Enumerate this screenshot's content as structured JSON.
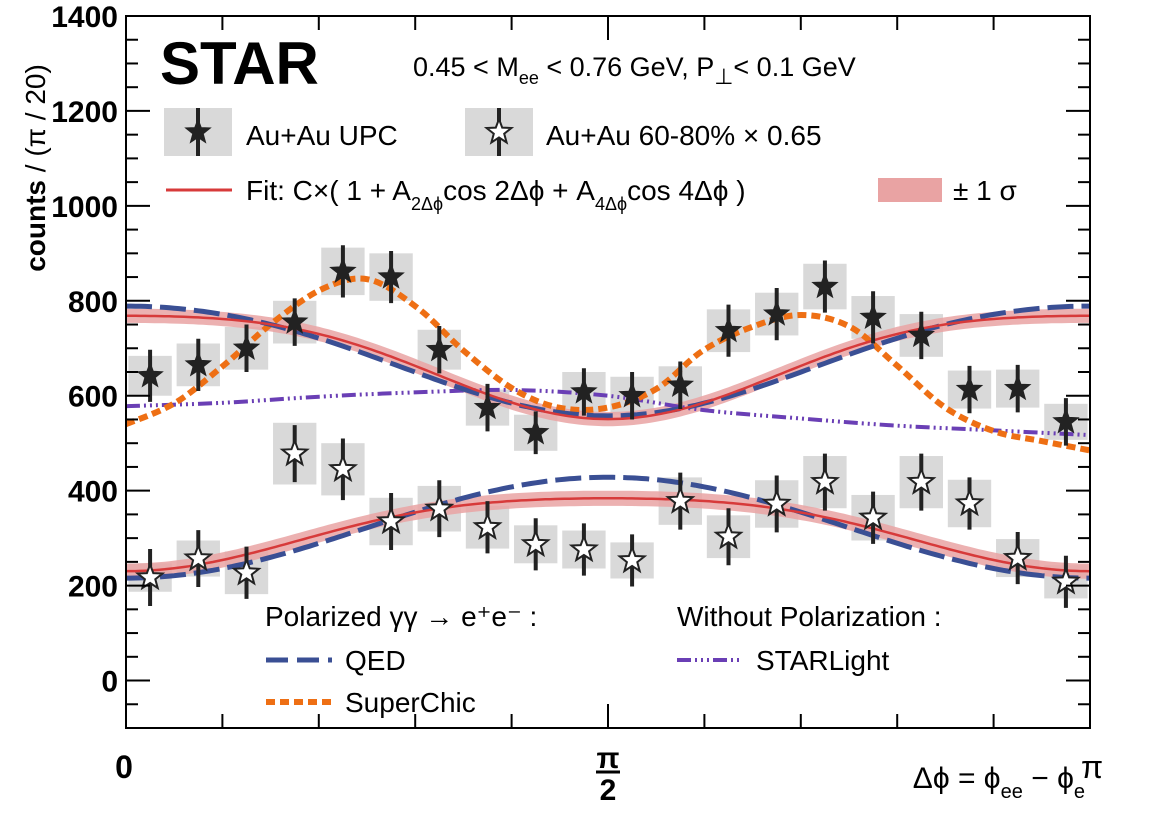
{
  "chart_data": {
    "type": "scatter",
    "experiment": "STAR",
    "kinematics": {
      "prefix": "0.45 < M",
      "m_sub": "ee",
      "mid": " < 0.76 GeV, P",
      "p_sub": "⊥",
      "suffix": "< 0.1 GeV"
    },
    "ylabel": {
      "main": "counts",
      "unit": " / (π / 20)"
    },
    "xlabel": {
      "lhs": "Δϕ = ϕ",
      "sub1": "ee",
      "mid": " − ϕ",
      "sub2": "e"
    },
    "xlim": [
      0,
      3.14159
    ],
    "ylim": [
      -100,
      1400
    ],
    "y_ticks": [
      0,
      200,
      400,
      600,
      800,
      1000,
      1200,
      1400
    ],
    "x_tick_labels": {
      "zero": "0",
      "half_num": "π",
      "half_den": "2",
      "pi": "π"
    },
    "legend": {
      "upc": "Au+Au UPC",
      "peripheral": "Au+Au 60-80% × 0.65",
      "fit": {
        "prefix": "Fit: C×( 1 + A",
        "sub2": "2Δϕ",
        "mid": "cos 2Δϕ + A",
        "sub4": "4Δϕ",
        "suffix": "cos 4Δϕ )"
      },
      "band": "± 1 σ",
      "polarized_title": "Polarized γγ → e⁺e⁻ :",
      "qed": "QED",
      "superchic": "SuperChic",
      "unpolarized_title": "Without Polarization :",
      "starlight": "STARLight"
    },
    "colors": {
      "qed": "#3a4f94",
      "superchic": "#ee6f14",
      "starlight": "#6a3fb5",
      "fit": "#d73a3a",
      "band": "#e9a3a3",
      "syst": "#d9d9d9",
      "marker": "#222222"
    },
    "bin_width": 0.15708,
    "series": [
      {
        "name": "Au+Au UPC",
        "x": [
          0.0785,
          0.2356,
          0.3927,
          0.5498,
          0.7069,
          0.8639,
          1.021,
          1.1781,
          1.3352,
          1.4923,
          1.6493,
          1.8064,
          1.9635,
          2.1206,
          2.2777,
          2.4347,
          2.5918,
          2.7489,
          2.906,
          3.0631
        ],
        "y": [
          642,
          665,
          700,
          755,
          862,
          850,
          697,
          575,
          522,
          608,
          600,
          622,
          737,
          772,
          830,
          765,
          727,
          613,
          615,
          545
        ],
        "stat_err": [
          55,
          55,
          50,
          50,
          55,
          55,
          50,
          50,
          45,
          50,
          50,
          50,
          55,
          55,
          55,
          55,
          50,
          50,
          50,
          50
        ],
        "syst_err": [
          42,
          45,
          45,
          45,
          50,
          50,
          42,
          38,
          38,
          42,
          40,
          40,
          45,
          45,
          48,
          45,
          45,
          40,
          40,
          38
        ]
      },
      {
        "name": "Au+Au 60-80% × 0.65",
        "x": [
          0.0785,
          0.2356,
          0.3927,
          0.5498,
          0.7069,
          0.8639,
          1.021,
          1.1781,
          1.3352,
          1.4923,
          1.6493,
          1.8064,
          1.9635,
          2.1206,
          2.2777,
          2.4347,
          2.5918,
          2.7489,
          2.906,
          3.0631
        ],
        "y": [
          217,
          257,
          227,
          478,
          445,
          335,
          362,
          323,
          287,
          276,
          253,
          378,
          303,
          372,
          418,
          343,
          418,
          373,
          258,
          208
        ],
        "stat_err": [
          60,
          60,
          55,
          60,
          65,
          60,
          60,
          55,
          55,
          55,
          55,
          60,
          60,
          60,
          60,
          55,
          60,
          55,
          55,
          55
        ],
        "syst_err": [
          30,
          38,
          45,
          65,
          55,
          50,
          48,
          45,
          40,
          40,
          38,
          50,
          45,
          50,
          55,
          48,
          55,
          50,
          40,
          35
        ]
      }
    ],
    "fits": [
      {
        "name": "Fit UPC",
        "C": 680,
        "A2": 0.16,
        "A4": -0.03,
        "band_width": 15
      },
      {
        "name": "Fit 60-80%",
        "C": 320,
        "A2": -0.24,
        "A4": -0.04,
        "band_width": 16
      }
    ],
    "models": [
      {
        "name": "QED (UPC)",
        "C": 680,
        "A2": 0.17,
        "A4": -0.01
      },
      {
        "name": "QED (60-80%)",
        "C": 322,
        "A2": -0.33,
        "A4": 0.0
      },
      {
        "name": "SuperChic",
        "x": [
          0,
          0.16,
          0.32,
          0.48,
          0.64,
          0.79,
          0.95,
          1.1,
          1.26,
          1.41,
          1.57,
          1.73,
          1.88,
          2.04,
          2.2,
          2.36,
          2.51,
          2.67,
          2.83,
          2.98,
          3.14
        ],
        "y": [
          540,
          585,
          665,
          755,
          825,
          845,
          785,
          695,
          615,
          575,
          575,
          615,
          695,
          745,
          770,
          745,
          665,
          575,
          525,
          505,
          485
        ]
      },
      {
        "name": "STARLight",
        "x": [
          0,
          0.31,
          0.63,
          0.94,
          1.26,
          1.57,
          1.88,
          2.2,
          2.51,
          2.83,
          3.14
        ],
        "y": [
          578,
          585,
          598,
          607,
          612,
          600,
          570,
          552,
          537,
          527,
          517
        ]
      }
    ]
  }
}
